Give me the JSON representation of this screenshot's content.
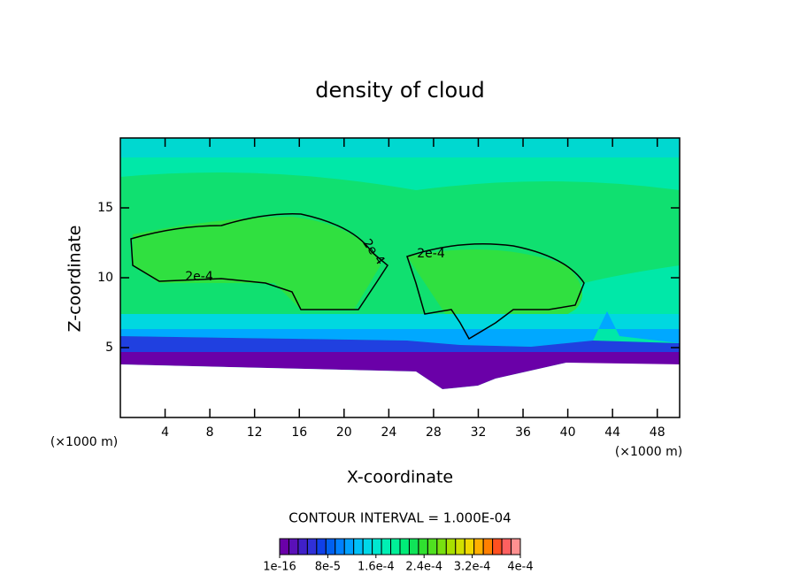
{
  "chart_data": {
    "type": "contour",
    "title": "density of cloud",
    "x_label": "X-coordinate",
    "y_label": "Z-coordinate",
    "x_unit_left": "(×1000 m)",
    "x_unit_right": "(×1000 m)",
    "xlim": [
      0,
      50
    ],
    "xticks": [
      4,
      8,
      12,
      16,
      20,
      24,
      28,
      32,
      36,
      40,
      44,
      48
    ],
    "ylim": [
      0,
      20
    ],
    "yticks": [
      5,
      10,
      15
    ],
    "contour_labels": [
      "2e-4",
      "2e-4",
      "2e-4"
    ],
    "contour_interval": "CONTOUR INTERVAL = 1.000E-04",
    "clim": [
      0,
      0.0004
    ],
    "colorbar_colors": [
      "#6a00a8",
      "#5a10b8",
      "#4020c8",
      "#3030d8",
      "#1040e8",
      "#0060f0",
      "#0080ff",
      "#00a0ff",
      "#00c0f8",
      "#00d8e8",
      "#00e8d0",
      "#00f0b4",
      "#00f098",
      "#00ec78",
      "#10e458",
      "#30e030",
      "#50e020",
      "#78e010",
      "#a8e000",
      "#d0e000",
      "#f0d800",
      "#ffb000",
      "#ff8000",
      "#ff5020",
      "#ff6060",
      "#ff9090"
    ],
    "colorbar_ticks": [
      {
        "value": 1e-16,
        "label": "1e-16"
      },
      {
        "value": 8e-05,
        "label": "8e-5"
      },
      {
        "value": 0.00016,
        "label": "1.6e-4"
      },
      {
        "value": 0.00024,
        "label": "2.4e-4"
      },
      {
        "value": 0.00032,
        "label": "3.2e-4"
      },
      {
        "value": 0.0004,
        "label": "4e-4"
      }
    ]
  }
}
